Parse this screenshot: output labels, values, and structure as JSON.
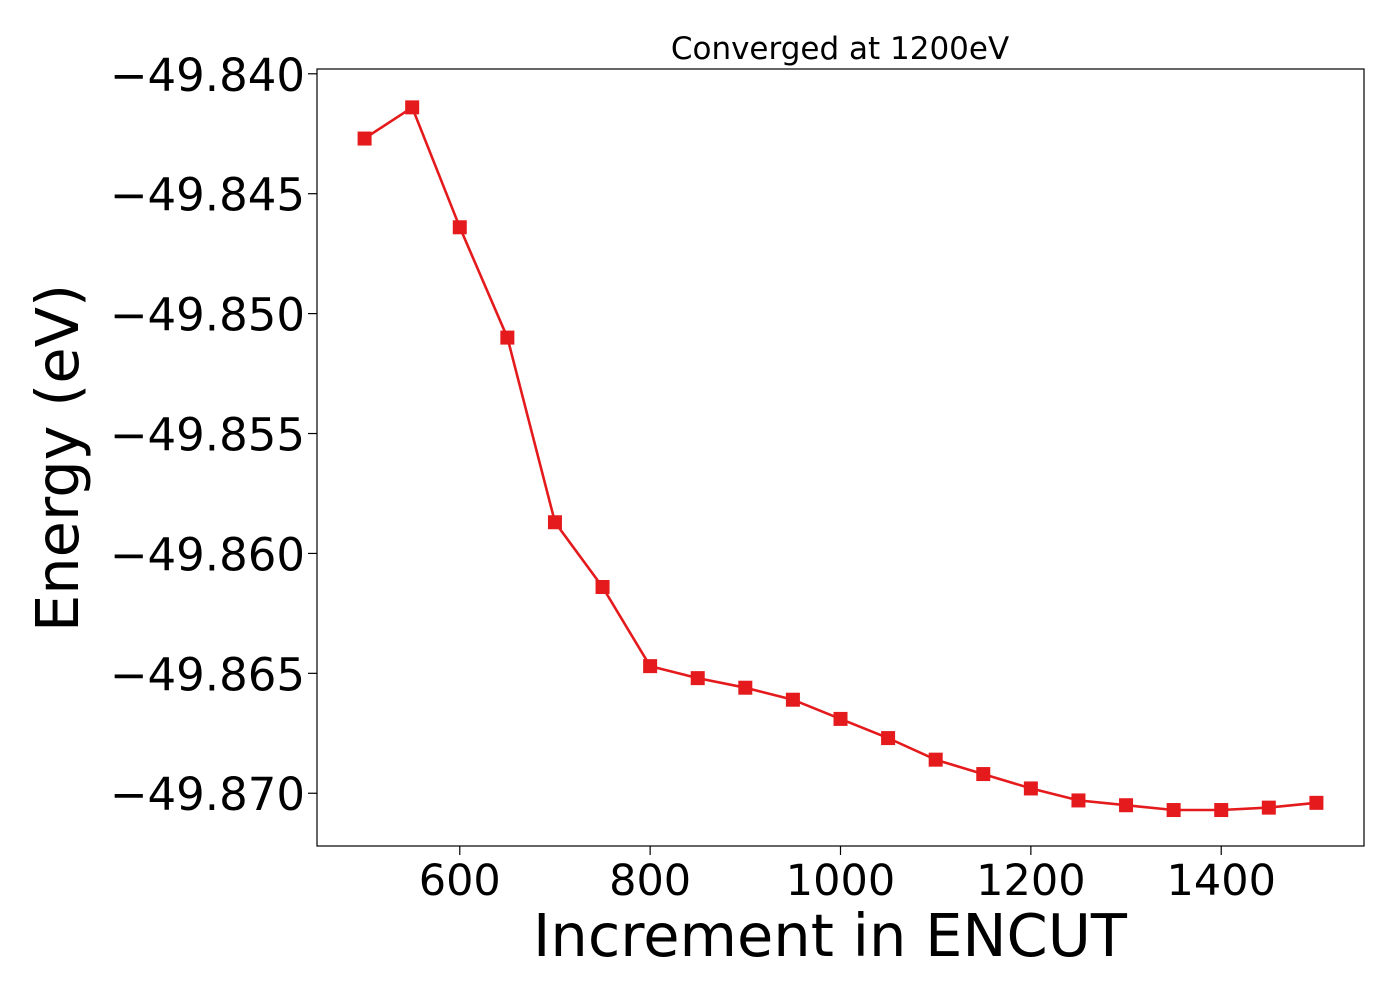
{
  "chart_data": {
    "type": "line",
    "title": "Converged at 1200eV",
    "xlabel": "Increment in ENCUT",
    "ylabel": "Energy (eV)",
    "xlim": [
      450,
      1550
    ],
    "ylim": [
      -49.8722,
      -49.8398
    ],
    "x_ticks": [
      600,
      800,
      1000,
      1200,
      1400
    ],
    "x_tick_labels": [
      "600",
      "800",
      "1000",
      "1200",
      "1400"
    ],
    "y_ticks": [
      -49.84,
      -49.845,
      -49.85,
      -49.855,
      -49.86,
      -49.865,
      -49.87
    ],
    "y_tick_labels": [
      "−49.840",
      "−49.845",
      "−49.850",
      "−49.855",
      "−49.860",
      "−49.865",
      "−49.870"
    ],
    "grid": false,
    "series": [
      {
        "color": "#e41a1c",
        "marker": "square",
        "x": [
          500,
          550,
          600,
          650,
          700,
          750,
          800,
          850,
          900,
          950,
          1000,
          1050,
          1100,
          1150,
          1200,
          1250,
          1300,
          1350,
          1400,
          1450,
          1500
        ],
        "y": [
          -49.8427,
          -49.8414,
          -49.8464,
          -49.851,
          -49.8587,
          -49.8614,
          -49.8647,
          -49.8652,
          -49.8656,
          -49.8661,
          -49.8669,
          -49.8677,
          -49.8686,
          -49.8692,
          -49.8698,
          -49.8703,
          -49.8705,
          -49.8707,
          -49.8707,
          -49.8706,
          -49.8704
        ]
      }
    ]
  }
}
